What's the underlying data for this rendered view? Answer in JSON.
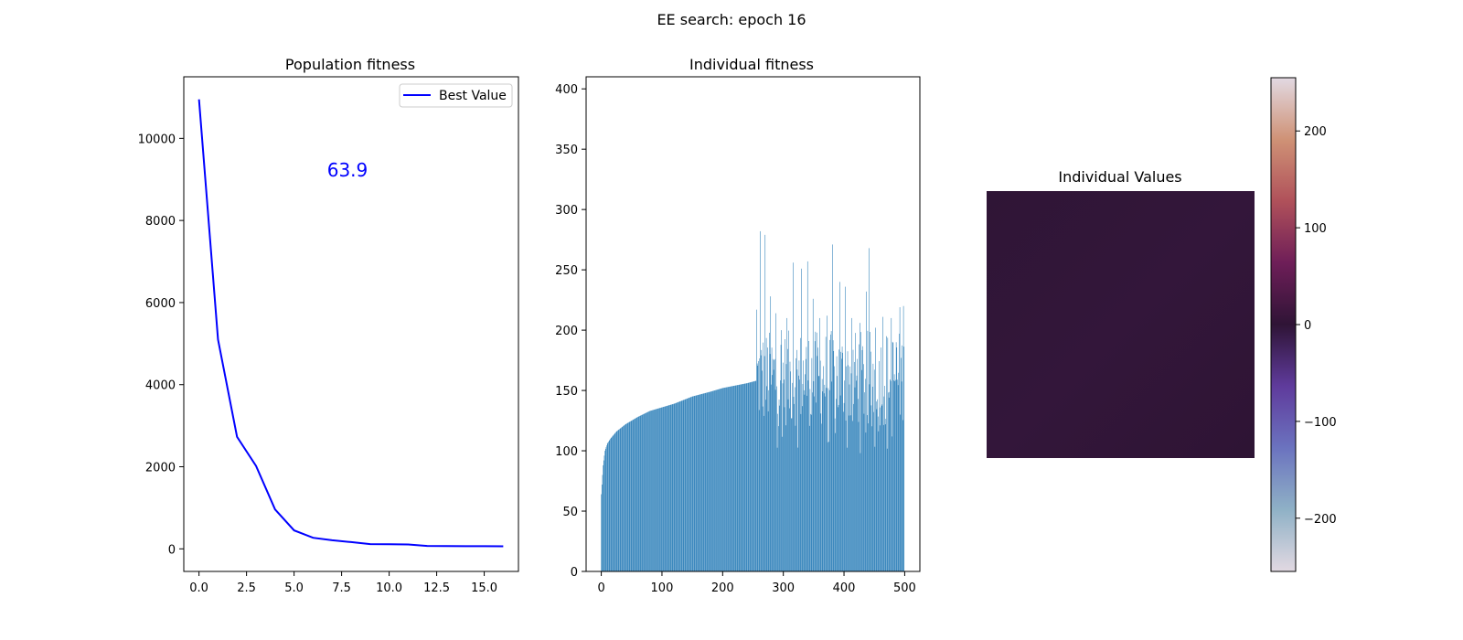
{
  "figure": {
    "suptitle": "EE search: epoch 16"
  },
  "chart_data": [
    {
      "type": "line",
      "title": "Population fitness",
      "xlabel": "",
      "ylabel": "",
      "x": [
        0,
        1,
        2,
        3,
        4,
        5,
        6,
        7,
        8,
        9,
        10,
        11,
        12,
        13,
        14,
        15,
        16
      ],
      "series": [
        {
          "name": "Best Value",
          "color": "#0000ff",
          "values": [
            10950,
            5100,
            2730,
            2020,
            960,
            450,
            270,
            210,
            165,
            115,
            112,
            108,
            70,
            68,
            66,
            65,
            63.9
          ]
        }
      ],
      "xlim": [
        -0.8,
        16.8
      ],
      "ylim": [
        -550,
        11500
      ],
      "xticks": [
        0,
        2.5,
        5,
        7.5,
        10,
        12.5,
        15
      ],
      "xtick_labels": [
        "0.0",
        "2.5",
        "5.0",
        "7.5",
        "10.0",
        "12.5",
        "15.0"
      ],
      "yticks": [
        0,
        2000,
        4000,
        6000,
        8000,
        10000
      ],
      "ytick_labels": [
        "0",
        "2000",
        "4000",
        "6000",
        "8000",
        "10000"
      ],
      "legend": "top-right",
      "annotation": {
        "text": "63.9",
        "color": "#0000ff"
      },
      "grid": false
    },
    {
      "type": "bar",
      "title": "Individual fitness",
      "xlabel": "",
      "ylabel": "",
      "n_bars": 500,
      "color": "#1f77b4",
      "xlim": [
        -25,
        525
      ],
      "ylim": [
        0,
        410
      ],
      "xticks": [
        0,
        100,
        200,
        300,
        400,
        500
      ],
      "xtick_labels": [
        "0",
        "100",
        "200",
        "300",
        "400",
        "500"
      ],
      "yticks": [
        0,
        50,
        100,
        150,
        200,
        250,
        300,
        350,
        400
      ],
      "ytick_labels": [
        "0",
        "50",
        "100",
        "150",
        "200",
        "250",
        "300",
        "350",
        "400"
      ],
      "sorted_segment": {
        "end_index": 255,
        "curve": [
          [
            0,
            64
          ],
          [
            3,
            88
          ],
          [
            6,
            100
          ],
          [
            10,
            106
          ],
          [
            15,
            110
          ],
          [
            25,
            116
          ],
          [
            40,
            122
          ],
          [
            60,
            128
          ],
          [
            80,
            133
          ],
          [
            100,
            136
          ],
          [
            120,
            139
          ],
          [
            150,
            145
          ],
          [
            180,
            149
          ],
          [
            200,
            152
          ],
          [
            220,
            154
          ],
          [
            240,
            156
          ],
          [
            255,
            158
          ]
        ]
      },
      "noisy_segment": {
        "start_index": 256,
        "min": 95,
        "max": 282,
        "peaks": [
          [
            256,
            217
          ],
          [
            262,
            282
          ],
          [
            270,
            279
          ],
          [
            279,
            228
          ],
          [
            288,
            214
          ],
          [
            297,
            200
          ],
          [
            306,
            210
          ],
          [
            316,
            256
          ],
          [
            330,
            251
          ],
          [
            340,
            257
          ],
          [
            349,
            226
          ],
          [
            360,
            210
          ],
          [
            372,
            212
          ],
          [
            381,
            271
          ],
          [
            393,
            240
          ],
          [
            402,
            236
          ],
          [
            413,
            210
          ],
          [
            426,
            206
          ],
          [
            437,
            232
          ],
          [
            441,
            268
          ],
          [
            452,
            202
          ],
          [
            464,
            211
          ],
          [
            478,
            210
          ],
          [
            486,
            190
          ],
          [
            492,
            219
          ],
          [
            498,
            220
          ]
        ]
      },
      "grid": false
    },
    {
      "type": "heatmap",
      "title": "Individual Values",
      "colormap": "twilight",
      "colorbar": {
        "range": [
          -255,
          255
        ],
        "ticks": [
          -200,
          -100,
          0,
          100,
          200
        ],
        "tick_labels": [
          "−200",
          "−100",
          "0",
          "100",
          "200"
        ],
        "stops": [
          "#e2d9e2",
          "#8fb1c6",
          "#6b73bf",
          "#5f3b9c",
          "#2f1436",
          "#6e1e58",
          "#b0515a",
          "#cf9276",
          "#e2d9e2"
        ]
      },
      "values_summary": {
        "min": 4,
        "max": 12
      },
      "color_samples": [
        "#2f1536",
        "#33163a",
        "#2e1434"
      ]
    }
  ]
}
